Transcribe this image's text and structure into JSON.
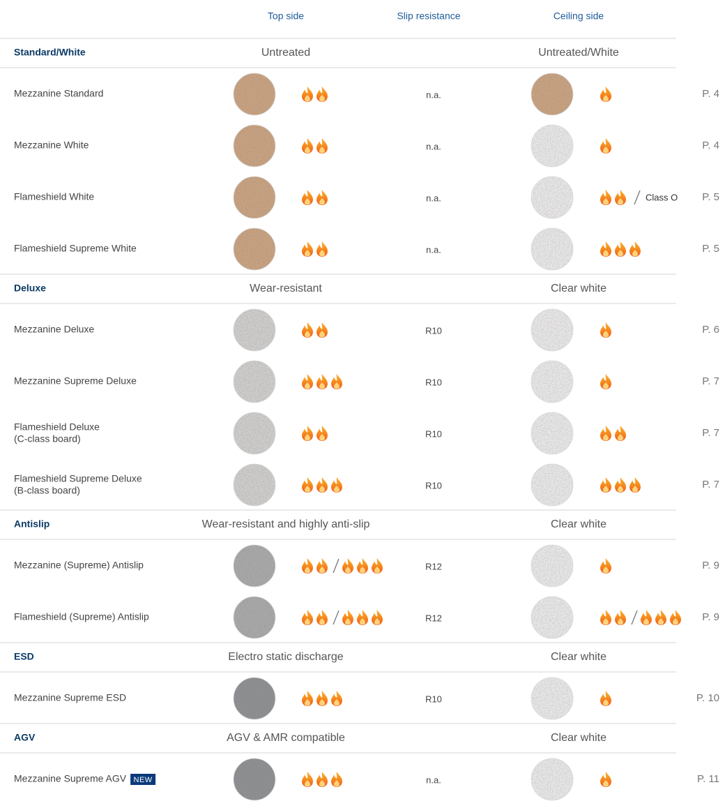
{
  "header": {
    "columns": [
      "Top side",
      "Slip resistance",
      "Ceiling side"
    ]
  },
  "groups": [
    {
      "name": "Standard/White",
      "top": "Untreated",
      "ceiling": "Untreated/White",
      "rows": [
        {
          "name": "Mezzanine Standard",
          "top_color": "#c9a382",
          "top_flames": [
            2
          ],
          "slip": "n.a.",
          "ceiling_color": "#c9a382",
          "ceiling_flames": [
            1
          ],
          "page": "P. 4"
        },
        {
          "name": "Mezzanine White",
          "top_color": "#c9a382",
          "top_flames": [
            2
          ],
          "slip": "n.a.",
          "ceiling_color": "#e9e9eb",
          "ceiling_flames": [
            1
          ],
          "page": "P. 4"
        },
        {
          "name": "Flameshield White",
          "top_color": "#c9a382",
          "top_flames": [
            2
          ],
          "slip": "n.a.",
          "ceiling_color": "#e9e9eb",
          "ceiling_flames": [
            2
          ],
          "ceiling_class": "Class O",
          "page": "P. 5"
        },
        {
          "name": "Flameshield Supreme White",
          "top_color": "#c9a382",
          "top_flames": [
            2
          ],
          "slip": "n.a.",
          "ceiling_color": "#e9e9eb",
          "ceiling_flames": [
            3
          ],
          "page": "P. 5"
        }
      ]
    },
    {
      "name": "Deluxe",
      "top": "Wear-resistant",
      "ceiling": "Clear white",
      "rows": [
        {
          "name": "Mezzanine Deluxe",
          "top_color": "#cfcfcf",
          "top_flames": [
            2
          ],
          "slip": "R10",
          "ceiling_color": "#e9e9eb",
          "ceiling_flames": [
            1
          ],
          "page": "P. 6"
        },
        {
          "name": "Mezzanine Supreme Deluxe",
          "top_color": "#cfcfcf",
          "top_flames": [
            3
          ],
          "slip": "R10",
          "ceiling_color": "#e9e9eb",
          "ceiling_flames": [
            1
          ],
          "page": "P. 7"
        },
        {
          "name": "Flameshield Deluxe",
          "note": "(C-class board)",
          "top_color": "#cfcfcf",
          "top_flames": [
            2
          ],
          "slip": "R10",
          "ceiling_color": "#e9e9eb",
          "ceiling_flames": [
            2
          ],
          "page": "P. 7"
        },
        {
          "name": "Flameshield Supreme Deluxe",
          "note": "(B-class board)",
          "top_color": "#cfcfcf",
          "top_flames": [
            3
          ],
          "slip": "R10",
          "ceiling_color": "#e9e9eb",
          "ceiling_flames": [
            3
          ],
          "page": "P. 7"
        }
      ]
    },
    {
      "name": "Antislip",
      "top": "Wear-resistant and highly anti-slip",
      "ceiling": "Clear white",
      "rows": [
        {
          "name": "Mezzanine (Supreme) Antislip",
          "top_color": "#a9a9ab",
          "top_flames": [
            2,
            3
          ],
          "slip": "R12",
          "ceiling_color": "#e9e9eb",
          "ceiling_flames": [
            1
          ],
          "page": "P. 9"
        },
        {
          "name": "Flameshield (Supreme) Antislip",
          "top_color": "#a9a9ab",
          "top_flames": [
            2,
            3
          ],
          "slip": "R12",
          "ceiling_color": "#e9e9eb",
          "ceiling_flames": [
            2,
            3
          ],
          "page": "P. 9"
        }
      ]
    },
    {
      "name": "ESD",
      "top": "Electro static discharge",
      "ceiling": "Clear white",
      "rows": [
        {
          "name": "Mezzanine Supreme ESD",
          "top_color": "#8d9094",
          "top_flames": [
            3
          ],
          "slip": "R10",
          "ceiling_color": "#e9e9eb",
          "ceiling_flames": [
            1
          ],
          "page": "P. 10"
        }
      ]
    },
    {
      "name": "AGV",
      "top": "AGV & AMR compatible",
      "ceiling": "Clear white",
      "rows": [
        {
          "name": "Mezzanine Supreme AGV",
          "badge": "NEW",
          "top_color": "#8d9094",
          "top_flames": [
            3
          ],
          "slip": "n.a.",
          "ceiling_color": "#e9e9eb",
          "ceiling_flames": [
            1
          ],
          "page": "P. 11"
        }
      ]
    }
  ]
}
